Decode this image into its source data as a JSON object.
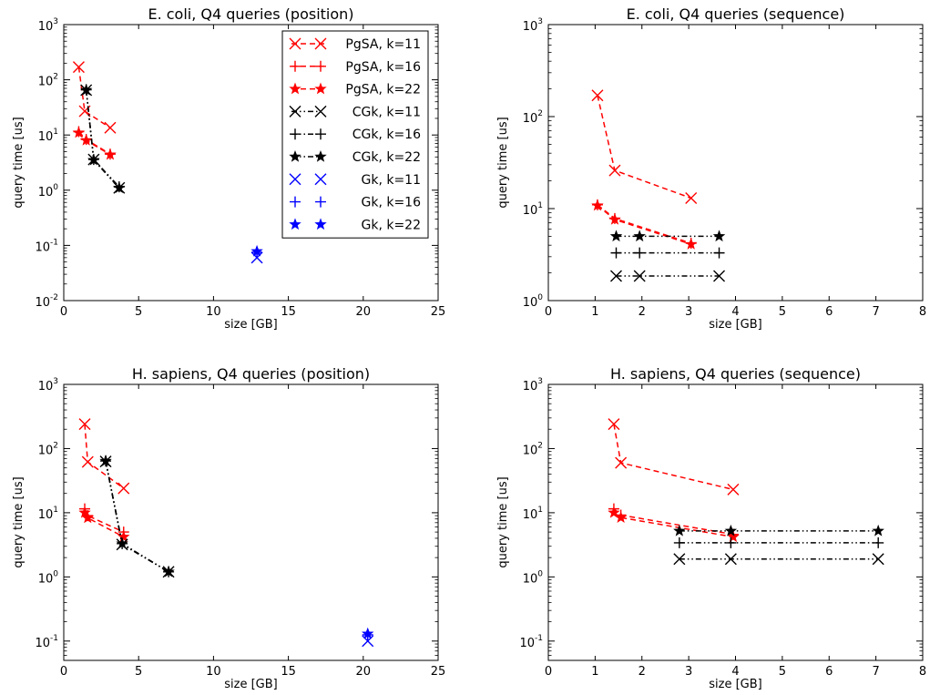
{
  "chart_data": [
    {
      "type": "line",
      "title": "E. coli, Q4 queries (position)",
      "xlabel": "size [GB]",
      "ylabel": "query time [us]",
      "xlim": [
        0,
        25
      ],
      "ylim": [
        0.01,
        1000
      ],
      "yscale": "log",
      "xticks": [
        "0",
        "5",
        "10",
        "15",
        "20",
        "25"
      ],
      "yticks": [
        {
          "v": 0.01,
          "base": "10",
          "exp": "-2"
        },
        {
          "v": 0.1,
          "base": "10",
          "exp": "-1"
        },
        {
          "v": 1,
          "base": "10",
          "exp": "0"
        },
        {
          "v": 10,
          "base": "10",
          "exp": "1"
        },
        {
          "v": 100,
          "base": "10",
          "exp": "2"
        },
        {
          "v": 1000,
          "base": "10",
          "exp": "3"
        }
      ],
      "legend_position": "top-right",
      "series": [
        {
          "name": "PgSA, k=11",
          "color": "#ff0000",
          "marker": "x",
          "line": "dashed",
          "points": [
            [
              1.0,
              170
            ],
            [
              1.4,
              27
            ],
            [
              3.1,
              13.5
            ]
          ]
        },
        {
          "name": "PgSA, k=16",
          "color": "#ff0000",
          "marker": "plus",
          "line": "dashed",
          "points": [
            [
              1.0,
              11.5
            ],
            [
              1.5,
              8.3
            ],
            [
              3.1,
              4.5
            ]
          ]
        },
        {
          "name": "PgSA, k=22",
          "color": "#ff0000",
          "marker": "star",
          "line": "dashed",
          "points": [
            [
              1.0,
              11.0
            ],
            [
              1.5,
              8.0
            ],
            [
              3.1,
              4.4
            ]
          ]
        },
        {
          "name": "CGk, k=11",
          "color": "#000000",
          "marker": "x",
          "line": "dashdotdot",
          "points": [
            [
              1.5,
              65
            ],
            [
              2.0,
              3.6
            ],
            [
              3.7,
              1.1
            ]
          ]
        },
        {
          "name": "CGk, k=16",
          "color": "#000000",
          "marker": "plus",
          "line": "dashdotdot",
          "points": [
            [
              1.5,
              66
            ],
            [
              2.0,
              3.6
            ],
            [
              3.7,
              1.15
            ]
          ]
        },
        {
          "name": "CGk, k=22",
          "color": "#000000",
          "marker": "star",
          "line": "dashdotdot",
          "points": [
            [
              1.5,
              65
            ],
            [
              2.0,
              3.5
            ],
            [
              3.7,
              1.1
            ]
          ]
        },
        {
          "name": "Gk, k=11",
          "color": "#0000ff",
          "marker": "x",
          "line": "none",
          "points": [
            [
              12.9,
              0.06
            ]
          ]
        },
        {
          "name": "Gk, k=16",
          "color": "#0000ff",
          "marker": "plus",
          "line": "none",
          "points": [
            [
              12.9,
              0.075
            ]
          ]
        },
        {
          "name": "Gk, k=22",
          "color": "#0000ff",
          "marker": "star",
          "line": "none",
          "points": [
            [
              12.9,
              0.078
            ]
          ]
        }
      ]
    },
    {
      "type": "line",
      "title": "E. coli, Q4 queries (sequence)",
      "xlabel": "size [GB]",
      "ylabel": "query time [us]",
      "xlim": [
        0,
        8
      ],
      "ylim": [
        1,
        1000
      ],
      "yscale": "log",
      "xticks": [
        "0",
        "1",
        "2",
        "3",
        "4",
        "5",
        "6",
        "7",
        "8"
      ],
      "yticks": [
        {
          "v": 1,
          "base": "10",
          "exp": "0"
        },
        {
          "v": 10,
          "base": "10",
          "exp": "1"
        },
        {
          "v": 100,
          "base": "10",
          "exp": "2"
        },
        {
          "v": 1000,
          "base": "10",
          "exp": "3"
        }
      ],
      "series": [
        {
          "name": "PgSA, k=11",
          "color": "#ff0000",
          "marker": "x",
          "line": "dashed",
          "points": [
            [
              1.05,
              170
            ],
            [
              1.42,
              26
            ],
            [
              3.05,
              13
            ]
          ]
        },
        {
          "name": "PgSA, k=16",
          "color": "#ff0000",
          "marker": "plus",
          "line": "dashed",
          "points": [
            [
              1.05,
              11
            ],
            [
              1.42,
              7.8
            ],
            [
              3.05,
              4.2
            ]
          ]
        },
        {
          "name": "PgSA, k=22",
          "color": "#ff0000",
          "marker": "star",
          "line": "dashed",
          "points": [
            [
              1.05,
              10.8
            ],
            [
              1.42,
              7.6
            ],
            [
              3.05,
              4.1
            ]
          ]
        },
        {
          "name": "CGk, k=11",
          "color": "#000000",
          "marker": "x",
          "line": "dashdotdot",
          "points": [
            [
              1.45,
              1.85
            ],
            [
              1.95,
              1.85
            ],
            [
              3.65,
              1.85
            ]
          ]
        },
        {
          "name": "CGk, k=16",
          "color": "#000000",
          "marker": "plus",
          "line": "dashdotdot",
          "points": [
            [
              1.45,
              3.3
            ],
            [
              1.95,
              3.3
            ],
            [
              3.65,
              3.3
            ]
          ]
        },
        {
          "name": "CGk, k=22",
          "color": "#000000",
          "marker": "star",
          "line": "dashdotdot",
          "points": [
            [
              1.45,
              5.0
            ],
            [
              1.95,
              5.0
            ],
            [
              3.65,
              5.0
            ]
          ]
        }
      ]
    },
    {
      "type": "line",
      "title": "H. sapiens, Q4 queries (position)",
      "xlabel": "size [GB]",
      "ylabel": "query time [us]",
      "xlim": [
        0,
        25
      ],
      "ylim": [
        0.05,
        1000
      ],
      "yscale": "log",
      "xticks": [
        "0",
        "5",
        "10",
        "15",
        "20",
        "25"
      ],
      "yticks": [
        {
          "v": 0.1,
          "base": "10",
          "exp": "-1"
        },
        {
          "v": 1,
          "base": "10",
          "exp": "0"
        },
        {
          "v": 10,
          "base": "10",
          "exp": "1"
        },
        {
          "v": 100,
          "base": "10",
          "exp": "2"
        },
        {
          "v": 1000,
          "base": "10",
          "exp": "3"
        }
      ],
      "series": [
        {
          "name": "PgSA, k=11",
          "color": "#ff0000",
          "marker": "x",
          "line": "dashed",
          "points": [
            [
              1.4,
              240
            ],
            [
              1.6,
              62
            ],
            [
              4.0,
              24
            ]
          ]
        },
        {
          "name": "PgSA, k=16",
          "color": "#ff0000",
          "marker": "plus",
          "line": "dashed",
          "points": [
            [
              1.4,
              11.5
            ],
            [
              1.6,
              9.0
            ],
            [
              4.0,
              5.0
            ]
          ]
        },
        {
          "name": "PgSA, k=22",
          "color": "#ff0000",
          "marker": "star",
          "line": "dashed",
          "points": [
            [
              1.4,
              10.0
            ],
            [
              1.6,
              8.3
            ],
            [
              4.0,
              4.2
            ]
          ]
        },
        {
          "name": "CGk, k=11",
          "color": "#000000",
          "marker": "x",
          "line": "dashdotdot",
          "points": [
            [
              2.8,
              63
            ],
            [
              3.9,
              3.2
            ],
            [
              7.0,
              1.2
            ]
          ]
        },
        {
          "name": "CGk, k=16",
          "color": "#000000",
          "marker": "plus",
          "line": "dashdotdot",
          "points": [
            [
              2.8,
              64
            ],
            [
              3.9,
              3.3
            ],
            [
              7.0,
              1.2
            ]
          ]
        },
        {
          "name": "CGk, k=22",
          "color": "#000000",
          "marker": "star",
          "line": "dashdotdot",
          "points": [
            [
              2.8,
              64
            ],
            [
              3.9,
              3.3
            ],
            [
              7.0,
              1.2
            ]
          ]
        },
        {
          "name": "Gk, k=11",
          "color": "#0000ff",
          "marker": "x",
          "line": "none",
          "points": [
            [
              20.3,
              0.1
            ]
          ]
        },
        {
          "name": "Gk, k=16",
          "color": "#0000ff",
          "marker": "plus",
          "line": "none",
          "points": [
            [
              20.3,
              0.125
            ]
          ]
        },
        {
          "name": "Gk, k=22",
          "color": "#0000ff",
          "marker": "star",
          "line": "none",
          "points": [
            [
              20.3,
              0.13
            ]
          ]
        }
      ]
    },
    {
      "type": "line",
      "title": "H. sapiens, Q4 queries (sequence)",
      "xlabel": "size [GB]",
      "ylabel": "query time [us]",
      "xlim": [
        0,
        8
      ],
      "ylim": [
        0.05,
        1000
      ],
      "yscale": "log",
      "xticks": [
        "0",
        "1",
        "2",
        "3",
        "4",
        "5",
        "6",
        "7",
        "8"
      ],
      "yticks": [
        {
          "v": 0.1,
          "base": "10",
          "exp": "-1"
        },
        {
          "v": 1,
          "base": "10",
          "exp": "0"
        },
        {
          "v": 10,
          "base": "10",
          "exp": "1"
        },
        {
          "v": 100,
          "base": "10",
          "exp": "2"
        },
        {
          "v": 1000,
          "base": "10",
          "exp": "3"
        }
      ],
      "series": [
        {
          "name": "PgSA, k=11",
          "color": "#ff0000",
          "marker": "x",
          "line": "dashed",
          "points": [
            [
              1.4,
              240
            ],
            [
              1.55,
              60
            ],
            [
              3.95,
              23
            ]
          ]
        },
        {
          "name": "PgSA, k=16",
          "color": "#ff0000",
          "marker": "plus",
          "line": "dashed",
          "points": [
            [
              1.4,
              11.5
            ],
            [
              1.55,
              9.2
            ],
            [
              3.95,
              4.6
            ]
          ]
        },
        {
          "name": "PgSA, k=22",
          "color": "#ff0000",
          "marker": "star",
          "line": "dashed",
          "points": [
            [
              1.4,
              10.0
            ],
            [
              1.55,
              8.4
            ],
            [
              3.95,
              4.2
            ]
          ]
        },
        {
          "name": "CGk, k=11",
          "color": "#000000",
          "marker": "x",
          "line": "dashdotdot",
          "points": [
            [
              2.8,
              1.9
            ],
            [
              3.9,
              1.9
            ],
            [
              7.05,
              1.9
            ]
          ]
        },
        {
          "name": "CGk, k=16",
          "color": "#000000",
          "marker": "plus",
          "line": "dashdotdot",
          "points": [
            [
              2.8,
              3.4
            ],
            [
              3.9,
              3.4
            ],
            [
              7.05,
              3.4
            ]
          ]
        },
        {
          "name": "CGk, k=22",
          "color": "#000000",
          "marker": "star",
          "line": "dashdotdot",
          "points": [
            [
              2.8,
              5.2
            ],
            [
              3.9,
              5.2
            ],
            [
              7.05,
              5.2
            ]
          ]
        }
      ]
    }
  ]
}
